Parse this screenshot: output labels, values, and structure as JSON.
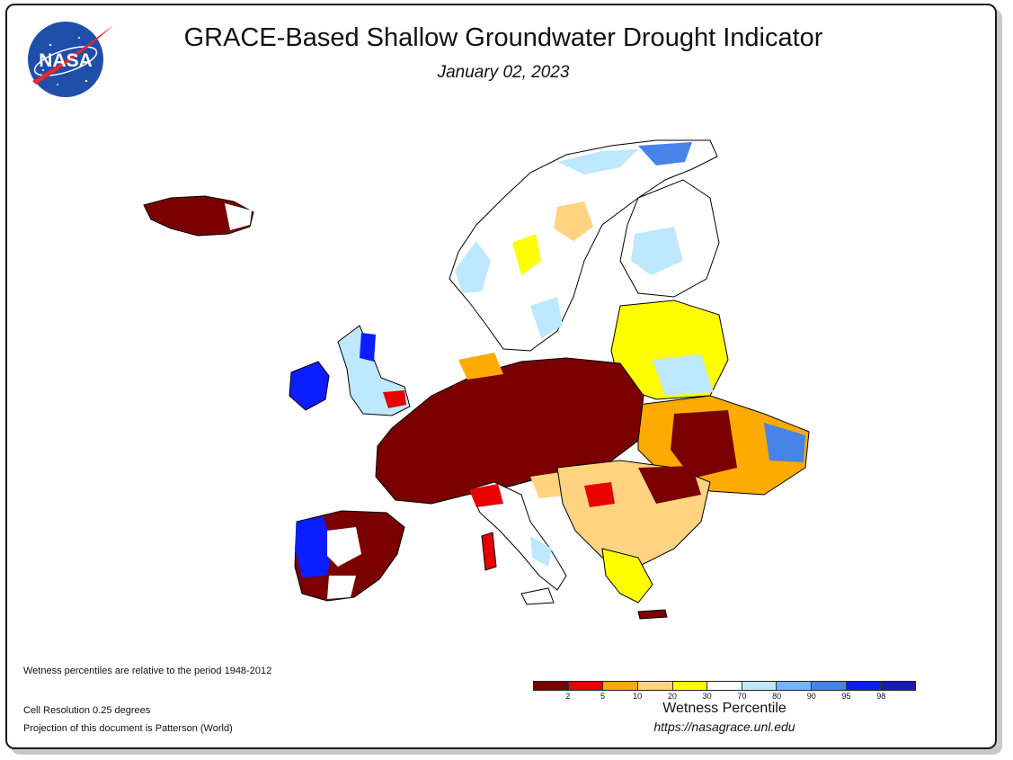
{
  "header": {
    "logo_text": "NASA",
    "title": "GRACE-Based Shallow Groundwater Drought Indicator",
    "date": "January 02, 2023"
  },
  "map": {
    "region": "Europe",
    "overall_condition": "widespread drought (low wetness percentiles) across central and southeastern Europe; wet conditions in Ireland, northwestern Iberia and northern Scandinavia"
  },
  "notes": {
    "period": "Wetness percentiles are relative to the period 1948-2012",
    "resolution": "Cell Resolution 0.25 degrees",
    "projection": "Projection of this document is Patterson (World)"
  },
  "legend": {
    "title": "Wetness Percentile",
    "url": "https://nasagrace.unl.edu",
    "colors": [
      "#7a0000",
      "#e60000",
      "#ffaa00",
      "#ffd37f",
      "#ffff00",
      "#ffffff",
      "#bee8ff",
      "#73b2ff",
      "#4883e8",
      "#0c1eff",
      "#1a1ab8"
    ],
    "tick_labels": [
      "2",
      "5",
      "10",
      "20",
      "30",
      "70",
      "80",
      "90",
      "95",
      "98"
    ]
  }
}
